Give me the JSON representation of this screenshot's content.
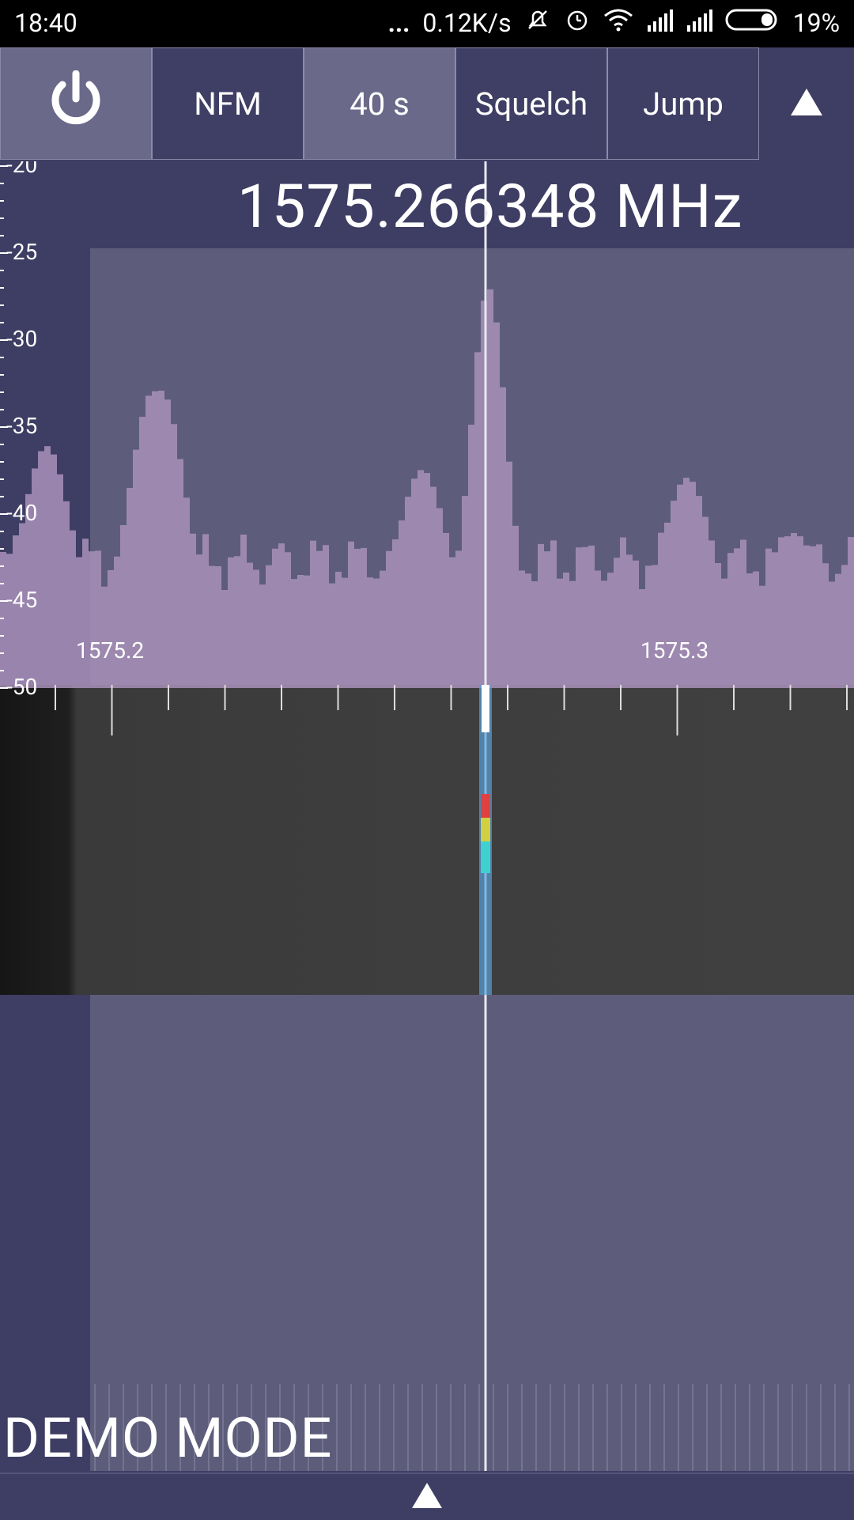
{
  "status": {
    "time": "18:40",
    "dots": "...",
    "net_speed": "0.12K/s",
    "battery": "19%",
    "icons": [
      "mute-bell-icon",
      "alarm-icon",
      "wifi-icon",
      "signal-icon",
      "signal-icon-2",
      "battery-icon"
    ]
  },
  "toolbar": {
    "power_icon": "power-icon",
    "mode": "NFM",
    "time": "40 s",
    "squelch": "Squelch",
    "jump": "Jump",
    "collapse_icon": "triangle-up-icon"
  },
  "frequency": "1575.266348 MHz",
  "db_axis": [
    "-20",
    "-25",
    "-30",
    "-35",
    "-40",
    "-45",
    "-50"
  ],
  "freq_axis": [
    "1575.2",
    "1575.3"
  ],
  "demo_mode": "DEMO MODE",
  "bottom": {
    "expand_icon": "triangle-up-icon"
  },
  "colors": {
    "background": "#3e3d63",
    "bandwidth_overlay": "#5d5d7b",
    "spectrum_fill": "#a891b8",
    "carrier_line": "#e8e8f0"
  }
}
